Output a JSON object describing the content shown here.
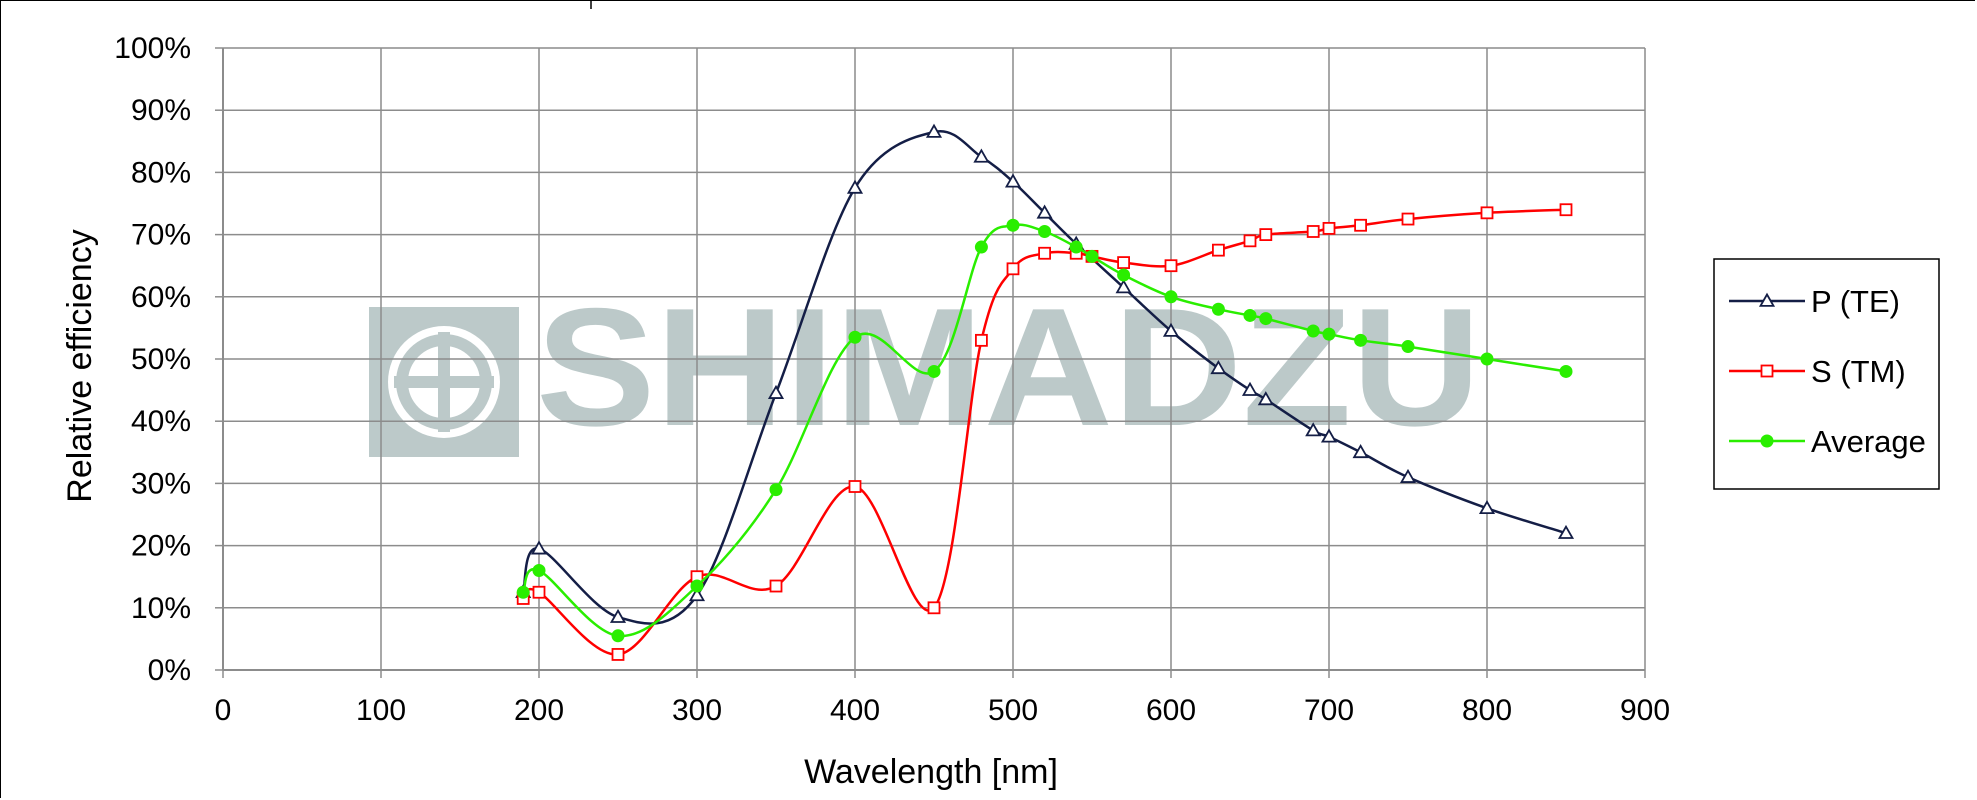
{
  "watermark": {
    "text": "SHIMADZU",
    "color": "#a6b8b8"
  },
  "chart_data": {
    "type": "line",
    "xlabel": "Wavelength [nm]",
    "ylabel": "Relative efficiency",
    "xlim": [
      0,
      900
    ],
    "ylim": [
      0,
      100
    ],
    "x_ticks": [
      0,
      100,
      200,
      300,
      400,
      500,
      600,
      700,
      800,
      900
    ],
    "x_tick_labels": [
      "0",
      "100",
      "200",
      "300",
      "400",
      "500",
      "600",
      "700",
      "800",
      "900"
    ],
    "y_ticks": [
      0,
      10,
      20,
      30,
      40,
      50,
      60,
      70,
      80,
      90,
      100
    ],
    "y_tick_labels": [
      "0%",
      "10%",
      "20%",
      "30%",
      "40%",
      "50%",
      "60%",
      "70%",
      "80%",
      "90%",
      "100%"
    ],
    "grid": true,
    "legend_position": "right",
    "series": [
      {
        "name": "P (TE)",
        "color": "#141e46",
        "marker": "triangle-open",
        "x": [
          190,
          200,
          250,
          300,
          350,
          400,
          450,
          480,
          500,
          520,
          540,
          570,
          600,
          630,
          650,
          660,
          690,
          700,
          720,
          750,
          800,
          850
        ],
        "y": [
          12.5,
          19.5,
          8.5,
          12,
          44.5,
          77.5,
          86.5,
          82.5,
          78.5,
          73.5,
          68.5,
          61.5,
          54.5,
          48.5,
          45,
          43.5,
          38.5,
          37.5,
          35,
          31,
          26,
          22
        ]
      },
      {
        "name": "S (TM)",
        "color": "#ff0000",
        "marker": "square-open",
        "x": [
          190,
          200,
          250,
          300,
          350,
          400,
          450,
          480,
          500,
          520,
          540,
          550,
          570,
          600,
          630,
          650,
          660,
          690,
          700,
          720,
          750,
          800,
          850
        ],
        "y": [
          11.5,
          12.5,
          2.5,
          15,
          13.5,
          29.5,
          10,
          53,
          64.5,
          67,
          67,
          66.5,
          65.5,
          65,
          67.5,
          69,
          70,
          70.5,
          71,
          71.5,
          72.5,
          73.5,
          74
        ]
      },
      {
        "name": "Average",
        "color": "#2aee00",
        "marker": "circle-filled",
        "x": [
          190,
          200,
          250,
          300,
          350,
          400,
          450,
          480,
          500,
          520,
          540,
          550,
          570,
          600,
          630,
          650,
          660,
          690,
          700,
          720,
          750,
          800,
          850
        ],
        "y": [
          12.5,
          16,
          5.5,
          13.5,
          29,
          53.5,
          48,
          68,
          71.5,
          70.5,
          68,
          66.5,
          63.5,
          60,
          58,
          57,
          56.5,
          54.5,
          54,
          53,
          52,
          50,
          48
        ]
      }
    ]
  }
}
